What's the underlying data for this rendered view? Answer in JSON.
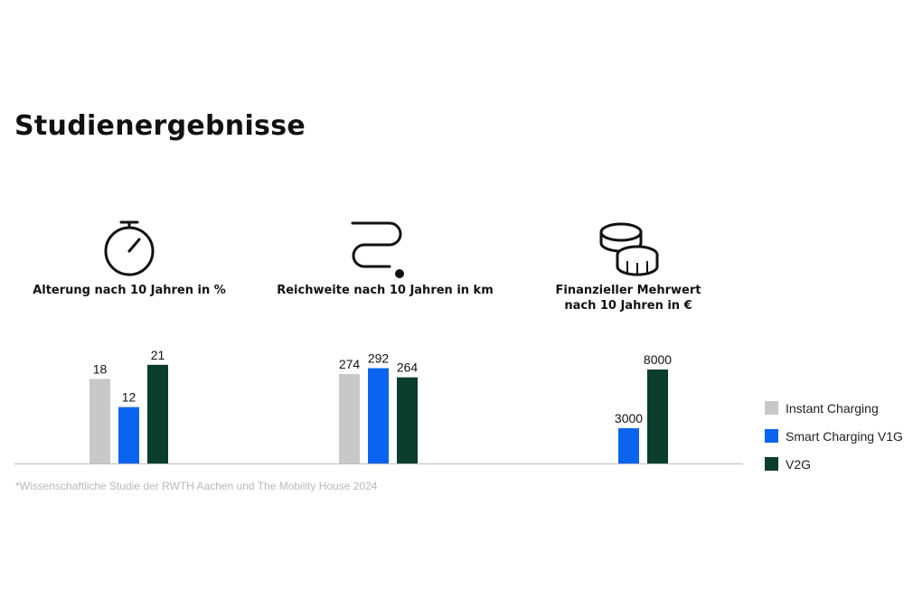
{
  "title": "Studienergebnisse",
  "footnote": "*Wissenschaftliche Studie der RWTH Aachen und The Mobility House 2024",
  "colors": {
    "instant": "#c8c8c8",
    "smart": "#0a64f0",
    "v2g": "#0b3d2c",
    "baseline": "#bdbdbd"
  },
  "legend": [
    {
      "label": "Instant Charging",
      "color": "#c8c8c8"
    },
    {
      "label": "Smart Charging V1G",
      "color": "#0a64f0"
    },
    {
      "label": "V2G",
      "color": "#0b3d2c"
    }
  ],
  "panels": [
    {
      "icon": "stopwatch-icon",
      "title": "Alterung nach 10 Jahren in %"
    },
    {
      "icon": "route-icon",
      "title": "Reichweite nach 10 Jahren in km"
    },
    {
      "icon": "coins-icon",
      "title": "Finanzieller Mehrwert\nnach 10 Jahren in €"
    }
  ],
  "chart_data": [
    {
      "type": "bar",
      "title": "Alterung nach 10 Jahren in %",
      "series": [
        {
          "name": "Instant Charging",
          "values": [
            18
          ]
        },
        {
          "name": "Smart Charging V1G",
          "values": [
            12
          ]
        },
        {
          "name": "V2G",
          "values": [
            21
          ]
        }
      ],
      "ylim": [
        0,
        25
      ]
    },
    {
      "type": "bar",
      "title": "Reichweite nach 10 Jahren in km",
      "series": [
        {
          "name": "Instant Charging",
          "values": [
            274
          ]
        },
        {
          "name": "Smart Charging V1G",
          "values": [
            292
          ]
        },
        {
          "name": "V2G",
          "values": [
            264
          ]
        }
      ],
      "ylim": [
        0,
        360
      ]
    },
    {
      "type": "bar",
      "title": "Finanzieller Mehrwert nach 10 Jahren in €",
      "series": [
        {
          "name": "Instant Charging",
          "values": [
            null
          ]
        },
        {
          "name": "Smart Charging V1G",
          "values": [
            3000
          ]
        },
        {
          "name": "V2G",
          "values": [
            8000
          ]
        }
      ],
      "ylim": [
        0,
        10000
      ]
    }
  ]
}
